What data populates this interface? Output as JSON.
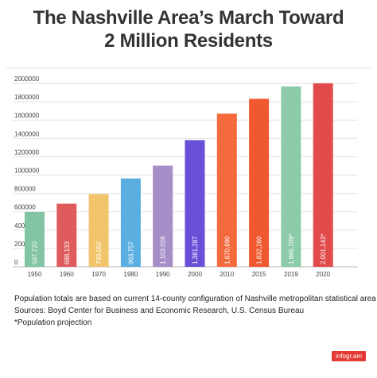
{
  "title_line1": "The Nashville Area’s March Toward",
  "title_line2": "2 Million Residents",
  "notes": {
    "line1": "Population totals are based on current 14-county configuration of Nashville metropolitan statistical area",
    "line2": "Sources: Boyd Center for Business and Economic Research, U.S. Census Bureau",
    "line3": "*Population projection"
  },
  "logo": "infogr.am",
  "chart_data": {
    "type": "bar",
    "title": "The Nashville Area’s March Toward 2 Million Residents",
    "xlabel": "",
    "ylabel": "",
    "ylim": [
      0,
      2000000
    ],
    "yticks": [
      "0",
      "200000",
      "400000",
      "600000",
      "800000",
      "1000000",
      "1200000",
      "1400000",
      "1600000",
      "1800000",
      "2000000"
    ],
    "grid": true,
    "categories": [
      "1950",
      "1960",
      "1970",
      "1980",
      "1990",
      "2000",
      "2010",
      "2015",
      "2019",
      "2020"
    ],
    "values": [
      597720,
      688133,
      793062,
      963757,
      1103028,
      1381287,
      1670890,
      1832260,
      1966709,
      2001143
    ],
    "labels": [
      "597,720",
      "688,133",
      "793,062",
      "963,757",
      "1,103,028",
      "1,381,287",
      "1,670,890",
      "1,832,260",
      "1,966,709*",
      "2,001,143*"
    ],
    "colors": [
      "#82c4a4",
      "#e05c5c",
      "#f1c46b",
      "#5aafe0",
      "#a58dc7",
      "#6a4fd8",
      "#f56a3c",
      "#f0582f",
      "#8ccbaa",
      "#e24b4b"
    ]
  }
}
